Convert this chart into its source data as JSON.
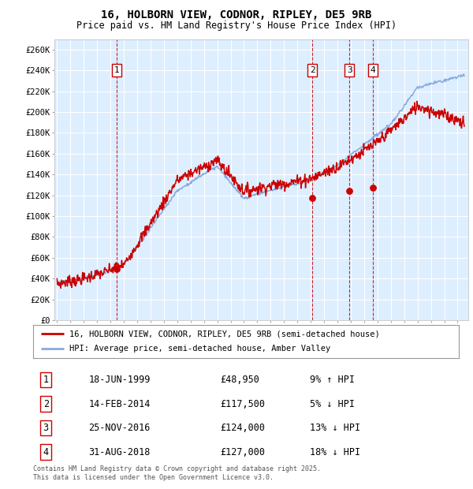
{
  "title": "16, HOLBORN VIEW, CODNOR, RIPLEY, DE5 9RB",
  "subtitle": "Price paid vs. HM Land Registry's House Price Index (HPI)",
  "ylim": [
    0,
    270000
  ],
  "ytick_values": [
    0,
    20000,
    40000,
    60000,
    80000,
    100000,
    120000,
    140000,
    160000,
    180000,
    200000,
    220000,
    240000,
    260000
  ],
  "ytick_labels": [
    "£0",
    "£20K",
    "£40K",
    "£60K",
    "£80K",
    "£100K",
    "£120K",
    "£140K",
    "£160K",
    "£180K",
    "£200K",
    "£220K",
    "£240K",
    "£260K"
  ],
  "xlim_start": 1994.8,
  "xlim_end": 2025.8,
  "background_color": "#ddeeff",
  "grid_color": "#ffffff",
  "transaction_color": "#cc0000",
  "hpi_color": "#88aadd",
  "sale_dates": [
    1999.46,
    2014.12,
    2016.9,
    2018.66
  ],
  "sale_prices": [
    48950,
    117500,
    124000,
    127000
  ],
  "sale_labels": [
    "1",
    "2",
    "3",
    "4"
  ],
  "vline_color": "#cc0000",
  "legend_transaction": "16, HOLBORN VIEW, CODNOR, RIPLEY, DE5 9RB (semi-detached house)",
  "legend_hpi": "HPI: Average price, semi-detached house, Amber Valley",
  "table_data": [
    [
      "1",
      "18-JUN-1999",
      "£48,950",
      "9% ↑ HPI"
    ],
    [
      "2",
      "14-FEB-2014",
      "£117,500",
      "5% ↓ HPI"
    ],
    [
      "3",
      "25-NOV-2016",
      "£124,000",
      "13% ↓ HPI"
    ],
    [
      "4",
      "31-AUG-2018",
      "£127,000",
      "18% ↓ HPI"
    ]
  ],
  "footnote": "Contains HM Land Registry data © Crown copyright and database right 2025.\nThis data is licensed under the Open Government Licence v3.0."
}
